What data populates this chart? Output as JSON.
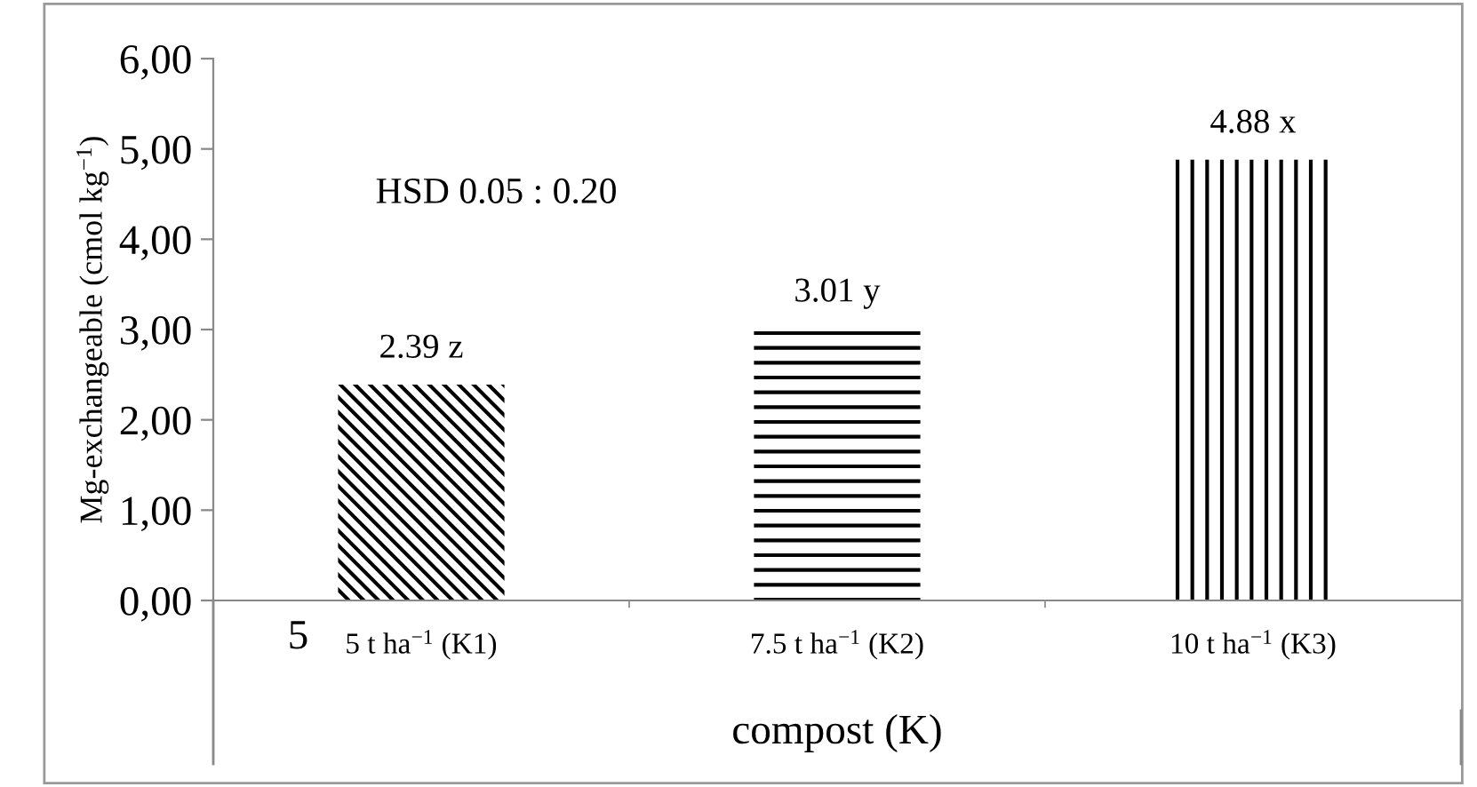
{
  "chart_data": {
    "type": "bar",
    "categories": [
      "5 t ha$^{−1}$ (K1)",
      "7.5 t ha$^{−1}$ (K2)",
      "10 t ha$^{−1}$ (K3)"
    ],
    "values": [
      2.39,
      3.01,
      4.88
    ],
    "value_labels": [
      "2.39 z",
      "3.01 y",
      "4.88 x"
    ],
    "colors": [
      "#000000",
      "#000000",
      "#000000"
    ],
    "xlabel": "compost (K)",
    "ylabel": "Mg-exchangeable (cmol kg$^{−1}$)",
    "ylim": [
      0,
      6
    ],
    "yticks": [
      {
        "value": 0,
        "label": "0,00"
      },
      {
        "value": 1,
        "label": "1,00"
      },
      {
        "value": 2,
        "label": "2,00"
      },
      {
        "value": 3,
        "label": "3,00"
      },
      {
        "value": 4,
        "label": "4,00"
      },
      {
        "value": 5,
        "label": "5,00"
      },
      {
        "value": 6,
        "label": "6,00"
      }
    ],
    "annotations": [
      "HSD 0.05 : 0.20",
      "5"
    ],
    "grid": false,
    "legend": false
  }
}
